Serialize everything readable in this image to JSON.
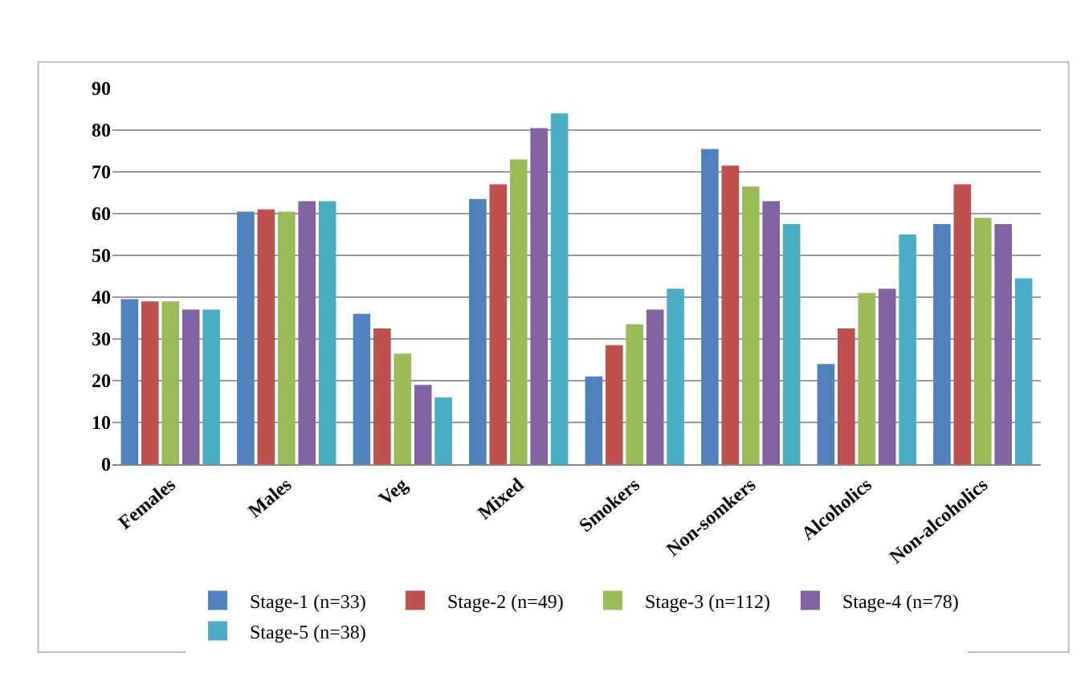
{
  "chart_data": {
    "type": "bar",
    "categories": [
      "Females",
      "Males",
      "Veg",
      "Mixed",
      "Smokers",
      "Non-somkers",
      "Alcoholics",
      "Non-alcoholics"
    ],
    "series": [
      {
        "name": "Stage-1 (n=33)",
        "color": "#4f81bd",
        "values": [
          39.5,
          60.5,
          36,
          63.5,
          21,
          75.5,
          24,
          57.5
        ]
      },
      {
        "name": "Stage-2 (n=49)",
        "color": "#c0504d",
        "values": [
          39,
          61,
          32.5,
          67,
          28.5,
          71.5,
          32.5,
          67
        ]
      },
      {
        "name": "Stage-3 (n=112)",
        "color": "#9bbb59",
        "values": [
          39,
          60.5,
          26.5,
          73,
          33.5,
          66.5,
          41,
          59
        ]
      },
      {
        "name": "Stage-4 (n=78)",
        "color": "#8064a2",
        "values": [
          37,
          63,
          19,
          80.5,
          37,
          63,
          42,
          57.5
        ]
      },
      {
        "name": "Stage-5 (n=38)",
        "color": "#4bacc6",
        "values": [
          37,
          63,
          16,
          84,
          42,
          57.5,
          55,
          44.5
        ]
      }
    ],
    "ylim": [
      0,
      90
    ],
    "yticks": [
      0,
      10,
      20,
      30,
      40,
      50,
      60,
      70,
      80,
      90
    ],
    "grid": "y",
    "legend": "bottom"
  }
}
